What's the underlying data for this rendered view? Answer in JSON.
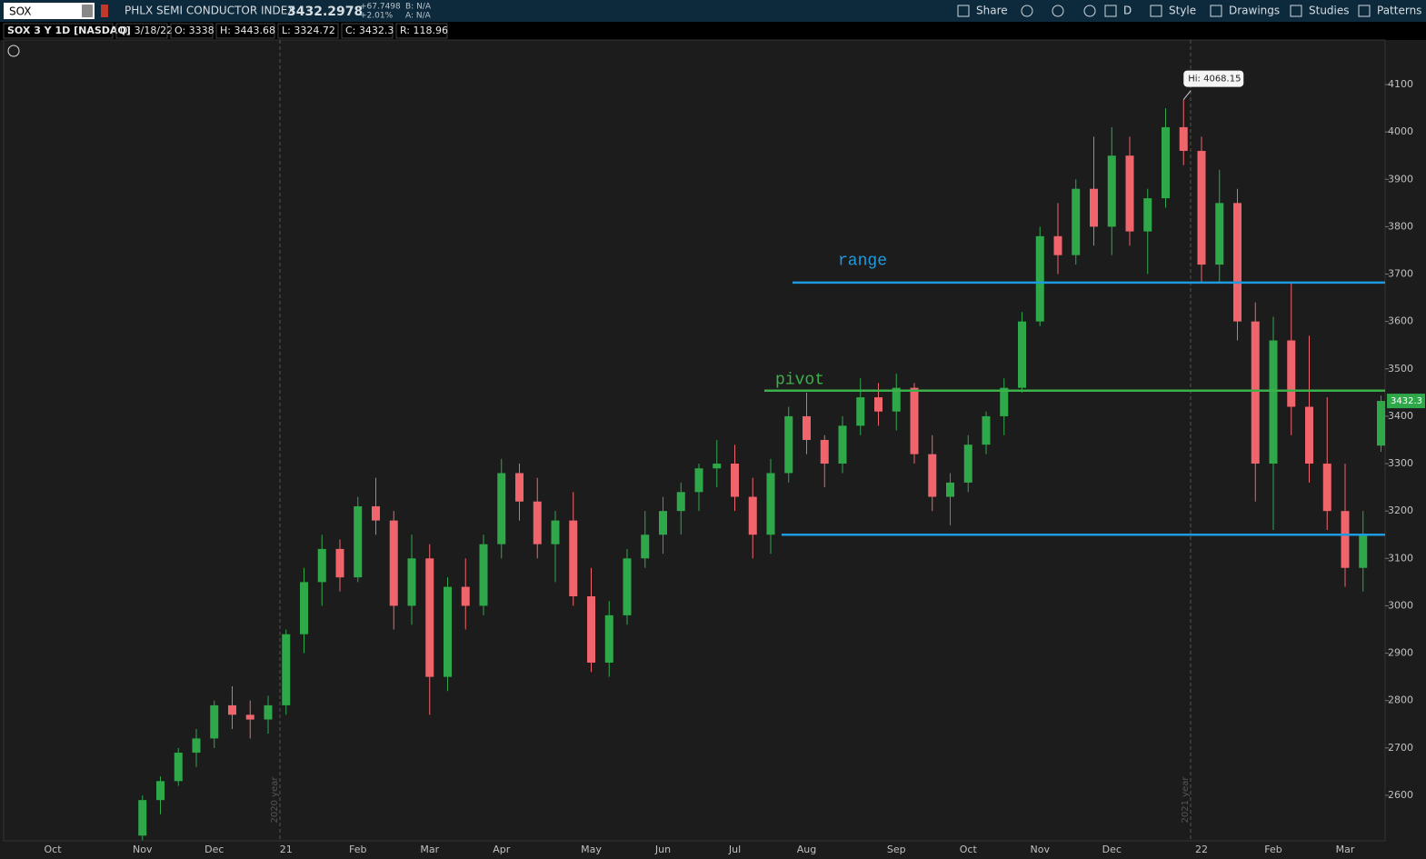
{
  "toolbar": {
    "symbol": "SOX",
    "description": "PHLX SEMI CONDUCTOR INDEX",
    "last": "3432.2978",
    "change": "+67.7498",
    "change_pct": "+2.01%",
    "bid": "B: N/A",
    "ask": "A: N/A",
    "buttons": [
      "Share",
      "D",
      "Style",
      "Drawings",
      "Studies",
      "Patterns"
    ]
  },
  "info_bar": [
    "SOX 3 Y 1D [NASDAQ]",
    "D: 3/18/22",
    "O: 3338",
    "H: 3443.68",
    "L: 3324.72",
    "C: 3432.3",
    "R: 118.96"
  ],
  "chart_data": {
    "type": "candlestick",
    "categories": [
      "Oct",
      null,
      null,
      null,
      null,
      "Nov",
      null,
      null,
      null,
      "Dec",
      null,
      null,
      null,
      "21",
      null,
      null,
      null,
      "Feb",
      null,
      null,
      null,
      "Mar",
      null,
      null,
      null,
      "Apr",
      null,
      null,
      null,
      null,
      "May",
      null,
      null,
      null,
      "Jun",
      null,
      null,
      null,
      "Jul",
      null,
      null,
      null,
      "Aug",
      null,
      null,
      null,
      null,
      "Sep",
      null,
      null,
      null,
      "Oct",
      null,
      null,
      null,
      "Nov",
      null,
      null,
      null,
      "Dec",
      null,
      null,
      null,
      null,
      "22",
      null,
      null,
      null,
      "Feb",
      null,
      null,
      null,
      "Mar",
      null,
      null
    ],
    "open": [
      null,
      null,
      null,
      null,
      null,
      2515,
      2590,
      2630,
      2690,
      2720,
      2790,
      2770,
      2760,
      2790,
      2940,
      3050,
      3120,
      3060,
      3210,
      3180,
      3000,
      3100,
      2850,
      3040,
      3000,
      3130,
      3280,
      3220,
      3130,
      3180,
      3020,
      2880,
      2980,
      3100,
      3150,
      3200,
      3240,
      3290,
      3300,
      3230,
      3150,
      3280,
      3400,
      3350,
      3300,
      3380,
      3440,
      3410,
      3460,
      3320,
      3230,
      3260,
      3340,
      3400,
      3460,
      3600,
      3780,
      3740,
      3880,
      3800,
      3950,
      3790,
      3860,
      4010,
      3960,
      3720,
      3850,
      3600,
      3300,
      3560,
      3420,
      3300,
      3200,
      3080,
      3338
    ],
    "high": [
      null,
      null,
      null,
      null,
      null,
      2600,
      2640,
      2700,
      2740,
      2800,
      2830,
      2800,
      2810,
      2950,
      3080,
      3150,
      3140,
      3230,
      3270,
      3200,
      3150,
      3130,
      3060,
      3100,
      3150,
      3310,
      3300,
      3270,
      3200,
      3240,
      3080,
      3010,
      3120,
      3200,
      3230,
      3260,
      3300,
      3350,
      3340,
      3270,
      3310,
      3420,
      3450,
      3360,
      3400,
      3480,
      3470,
      3490,
      3470,
      3360,
      3280,
      3360,
      3410,
      3480,
      3620,
      3800,
      3850,
      3900,
      3990,
      4010,
      3990,
      3880,
      4050,
      4068.15,
      3990,
      3920,
      3880,
      3640,
      3610,
      3680,
      3570,
      3440,
      3300,
      3200,
      3443.68
    ],
    "low": [
      null,
      null,
      null,
      null,
      null,
      2505,
      2560,
      2620,
      2660,
      2700,
      2740,
      2720,
      2730,
      2770,
      2900,
      3000,
      3030,
      3050,
      3150,
      2950,
      2960,
      2770,
      2820,
      2950,
      2980,
      3100,
      3180,
      3100,
      3050,
      3000,
      2860,
      2850,
      2960,
      3080,
      3110,
      3150,
      3200,
      3250,
      3200,
      3100,
      3110,
      3260,
      3320,
      3250,
      3280,
      3360,
      3380,
      3370,
      3300,
      3200,
      3170,
      3240,
      3320,
      3360,
      3450,
      3590,
      3700,
      3720,
      3760,
      3740,
      3760,
      3700,
      3840,
      3930,
      3680,
      3680,
      3560,
      3220,
      3160,
      3360,
      3260,
      3160,
      3040,
      3030,
      3324.72
    ],
    "close": [
      null,
      null,
      null,
      null,
      null,
      2590,
      2630,
      2690,
      2720,
      2790,
      2770,
      2760,
      2790,
      2940,
      3050,
      3120,
      3060,
      3210,
      3180,
      3000,
      3100,
      2850,
      3040,
      3000,
      3130,
      3280,
      3220,
      3130,
      3180,
      3020,
      2880,
      2980,
      3100,
      3150,
      3200,
      3240,
      3290,
      3300,
      3230,
      3150,
      3280,
      3400,
      3350,
      3300,
      3380,
      3440,
      3410,
      3460,
      3320,
      3230,
      3260,
      3340,
      3400,
      3460,
      3600,
      3780,
      3740,
      3880,
      3800,
      3950,
      3790,
      3860,
      4010,
      3960,
      3720,
      3850,
      3600,
      3300,
      3560,
      3420,
      3300,
      3200,
      3080,
      3150,
      3432.3
    ],
    "up_color": "#2fa84a",
    "down_color": "#f0646c",
    "ylim": [
      2504,
      4194
    ],
    "yticks": [
      2600,
      2700,
      2800,
      2900,
      3000,
      3100,
      3200,
      3300,
      3400,
      3500,
      3600,
      3700,
      3800,
      3900,
      4000,
      4100
    ],
    "levels": [
      {
        "label": "range",
        "value": 3682,
        "color": "#1e9be0"
      },
      {
        "label": "pivot",
        "value": 3454,
        "color": "#3cb04a"
      },
      {
        "value": 3150,
        "color": "#1e9be0"
      }
    ],
    "annotations": [
      {
        "text": "Hi: 4068.15"
      },
      {
        "text": "2020 year"
      },
      {
        "text": "2021 year"
      }
    ],
    "last_price_label": "3432.3"
  }
}
